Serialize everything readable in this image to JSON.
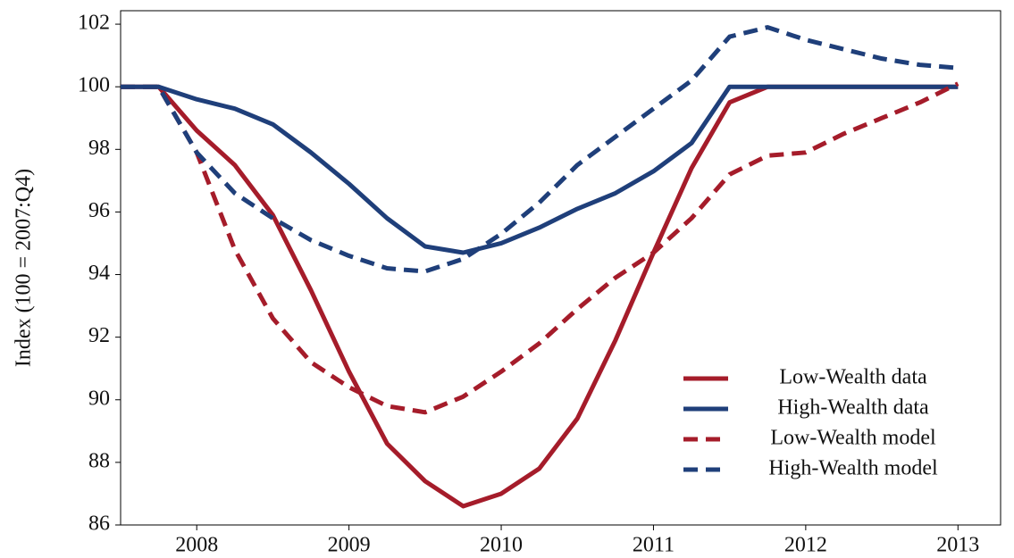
{
  "chart_data": {
    "type": "line",
    "y_label": "Index (100 = 2007:Q4)",
    "x": [
      2007.5,
      2007.75,
      2008,
      2008.25,
      2008.5,
      2008.75,
      2009,
      2009.25,
      2009.5,
      2009.75,
      2010,
      2010.25,
      2010.5,
      2010.75,
      2011,
      2011.25,
      2011.5,
      2011.75,
      2012,
      2012.25,
      2012.5,
      2012.75,
      2013
    ],
    "xlim": [
      2007.5,
      2013.28
    ],
    "xticks": [
      2008,
      2009,
      2010,
      2011,
      2012,
      2013
    ],
    "ylim": [
      86,
      102.43
    ],
    "yticks": [
      86,
      88,
      90,
      92,
      94,
      96,
      98,
      100,
      102
    ],
    "legend": "lower right",
    "series": [
      {
        "name": "Low-Wealth data",
        "color": "#a51c2a",
        "dashed": false,
        "values": [
          100,
          100,
          98.6,
          97.5,
          95.9,
          93.5,
          90.9,
          88.6,
          87.4,
          86.6,
          87.0,
          87.8,
          89.4,
          91.9,
          94.7,
          97.4,
          99.5,
          100,
          100,
          100,
          100,
          100,
          100
        ]
      },
      {
        "name": "High-Wealth data",
        "color": "#1f3f7a",
        "dashed": false,
        "values": [
          100,
          100,
          99.6,
          99.3,
          98.8,
          97.9,
          96.9,
          95.8,
          94.9,
          94.7,
          95.0,
          95.5,
          96.1,
          96.6,
          97.3,
          98.2,
          100,
          100,
          100,
          100,
          100,
          100,
          100
        ]
      },
      {
        "name": "Low-Wealth model",
        "color": "#a51c2a",
        "dashed": true,
        "values": [
          100,
          100,
          97.9,
          94.8,
          92.6,
          91.2,
          90.4,
          89.8,
          89.6,
          90.1,
          90.9,
          91.8,
          92.9,
          93.9,
          94.7,
          95.8,
          97.2,
          97.8,
          97.9,
          98.5,
          99.0,
          99.5,
          100.1
        ]
      },
      {
        "name": "High-Wealth model",
        "color": "#1f3f7a",
        "dashed": true,
        "values": [
          100,
          100,
          97.9,
          96.6,
          95.8,
          95.1,
          94.6,
          94.2,
          94.1,
          94.5,
          95.3,
          96.3,
          97.5,
          98.4,
          99.3,
          100.2,
          101.6,
          101.9,
          101.5,
          101.2,
          100.9,
          100.7,
          100.6
        ]
      }
    ]
  }
}
